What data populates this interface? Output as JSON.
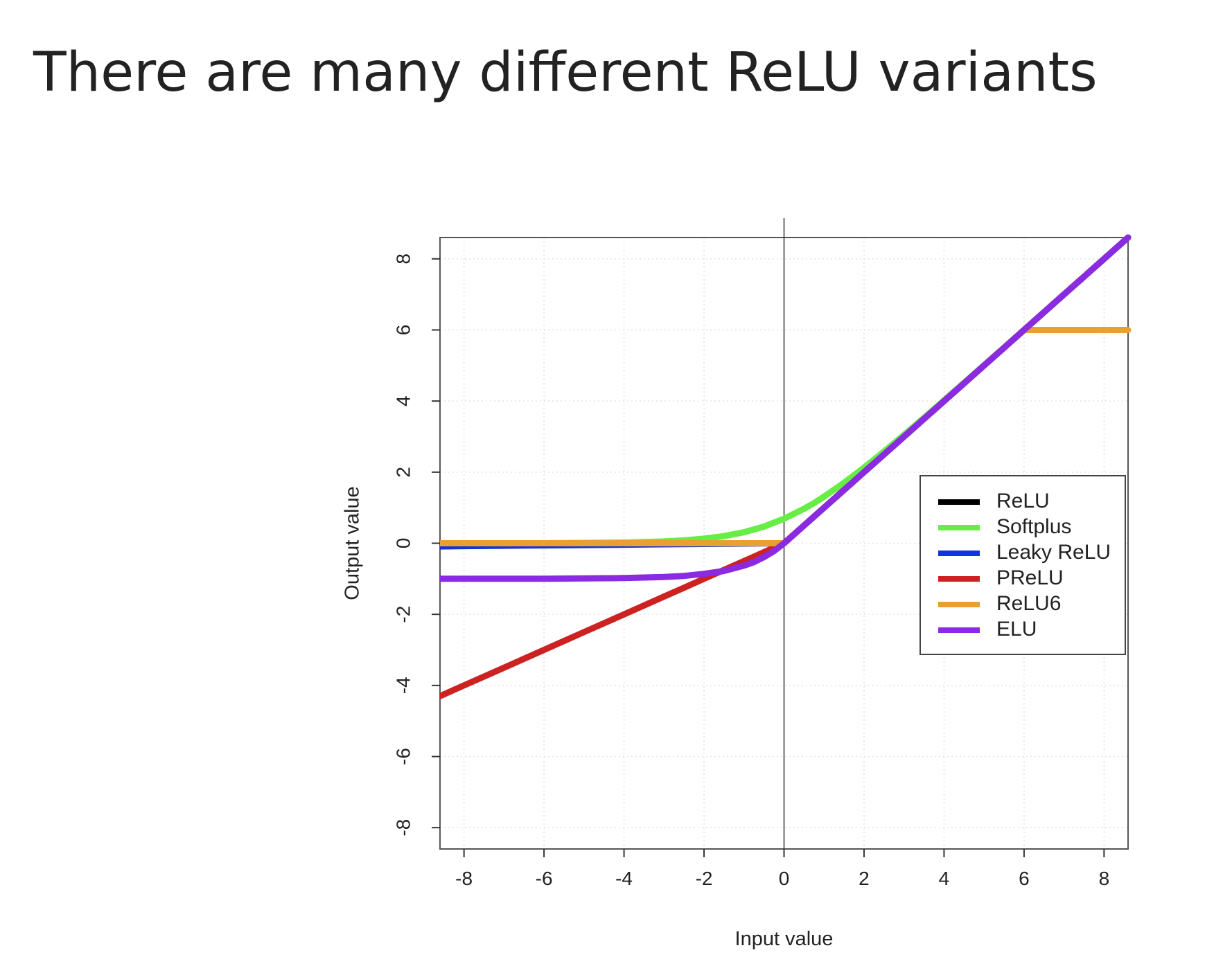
{
  "slide": {
    "title": "There are many different ReLU variants"
  },
  "chart_data": {
    "type": "line",
    "title": "",
    "xlabel": "Input value",
    "ylabel": "Output value",
    "xlim": [
      -8.6,
      8.6
    ],
    "ylim": [
      -8.6,
      8.6
    ],
    "x_ticks": [
      "-8",
      "-6",
      "-4",
      "-2",
      "0",
      "2",
      "4",
      "6",
      "8"
    ],
    "y_ticks": [
      "-8",
      "-6",
      "-4",
      "-2",
      "0",
      "2",
      "4",
      "6",
      "8"
    ],
    "grid": true,
    "legend_position": "right",
    "x": [
      -8.6,
      -8,
      -7,
      -6,
      -5,
      -4,
      -3,
      -2.5,
      -2,
      -1.5,
      -1,
      -0.75,
      -0.5,
      -0.25,
      0,
      0.25,
      0.5,
      0.75,
      1,
      1.5,
      2,
      2.5,
      3,
      3.5,
      4,
      5,
      6,
      7,
      8,
      8.6
    ],
    "series": [
      {
        "name": "ReLU",
        "color": "#000000",
        "values": [
          0,
          0,
          0,
          0,
          0,
          0,
          0,
          0,
          0,
          0,
          0,
          0,
          0,
          0,
          0,
          0.25,
          0.5,
          0.75,
          1,
          1.5,
          2,
          2.5,
          3,
          3.5,
          4,
          5,
          6,
          7,
          8,
          8.6
        ]
      },
      {
        "name": "Softplus",
        "color": "#66ee44",
        "values": [
          0,
          0,
          0,
          0,
          0.01,
          0.02,
          0.05,
          0.08,
          0.13,
          0.2,
          0.31,
          0.39,
          0.47,
          0.58,
          0.69,
          0.83,
          0.97,
          1.13,
          1.31,
          1.7,
          2.13,
          2.58,
          3.05,
          3.53,
          4.02,
          5.01,
          6,
          7,
          8,
          8.6
        ]
      },
      {
        "name": "Leaky ReLU",
        "color": "#1133dd",
        "values": [
          -0.09,
          -0.08,
          -0.07,
          -0.06,
          -0.05,
          -0.04,
          -0.03,
          -0.025,
          -0.02,
          -0.015,
          -0.01,
          -0.008,
          -0.005,
          -0.003,
          0,
          0.25,
          0.5,
          0.75,
          1,
          1.5,
          2,
          2.5,
          3,
          3.5,
          4,
          5,
          6,
          7,
          8,
          8.6
        ]
      },
      {
        "name": "PReLU",
        "color": "#cc2222",
        "values": [
          -4.3,
          -4,
          -3.5,
          -3,
          -2.5,
          -2,
          -1.5,
          -1.25,
          -1,
          -0.75,
          -0.5,
          -0.375,
          -0.25,
          -0.125,
          0,
          0.25,
          0.5,
          0.75,
          1,
          1.5,
          2,
          2.5,
          3,
          3.5,
          4,
          5,
          6,
          7,
          8,
          8.6
        ]
      },
      {
        "name": "ReLU6",
        "color": "#e8a030",
        "values": [
          0,
          0,
          0,
          0,
          0,
          0,
          0,
          0,
          0,
          0,
          0,
          0,
          0,
          0,
          0,
          0.25,
          0.5,
          0.75,
          1,
          1.5,
          2,
          2.5,
          3,
          3.5,
          4,
          5,
          6,
          6,
          6,
          6
        ]
      },
      {
        "name": "ELU",
        "color": "#8a2be2",
        "values": [
          -1,
          -1,
          -1,
          -1,
          -0.99,
          -0.98,
          -0.95,
          -0.92,
          -0.86,
          -0.78,
          -0.63,
          -0.53,
          -0.39,
          -0.22,
          0,
          0.25,
          0.5,
          0.75,
          1,
          1.5,
          2,
          2.5,
          3,
          3.5,
          4,
          5,
          6,
          7,
          8,
          8.6
        ]
      }
    ]
  }
}
